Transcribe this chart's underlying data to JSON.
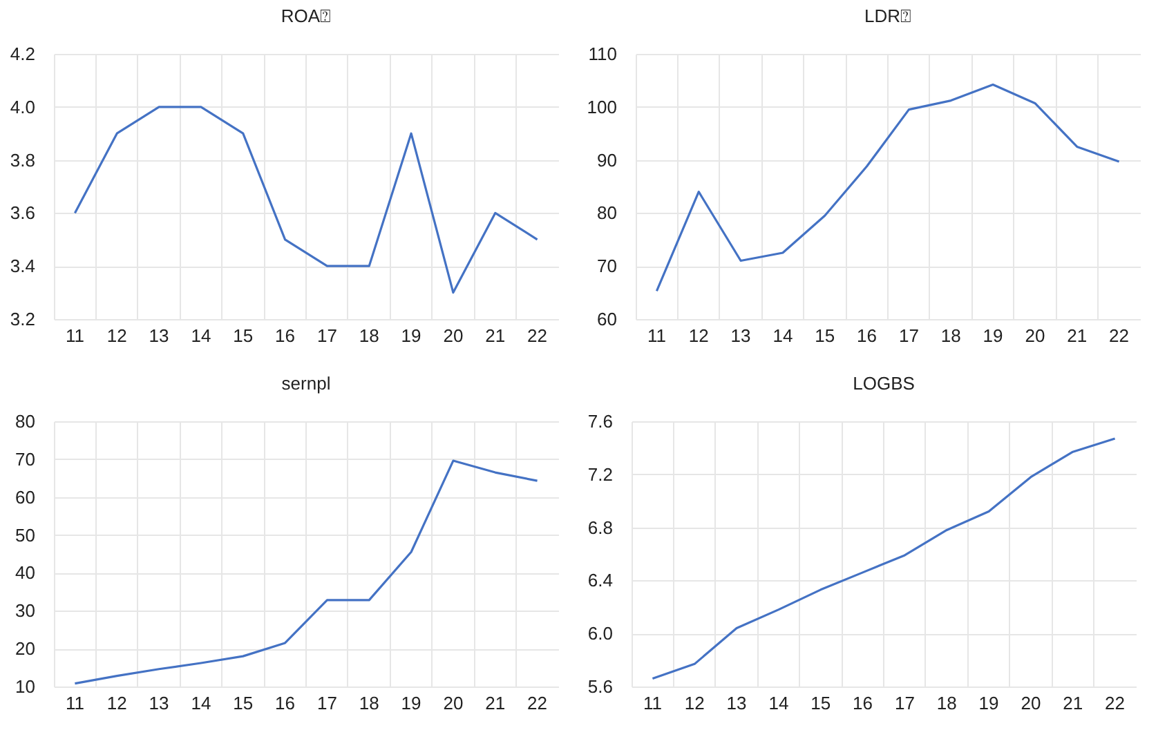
{
  "chart_data": [
    {
      "type": "line",
      "title": "ROA⍰",
      "categories": [
        "11",
        "12",
        "13",
        "14",
        "15",
        "16",
        "17",
        "18",
        "19",
        "20",
        "21",
        "22"
      ],
      "series": [
        {
          "color": "#4472c4",
          "values": [
            3.6,
            3.9,
            4.0,
            4.0,
            3.9,
            3.5,
            3.4,
            3.4,
            3.9,
            3.3,
            3.6,
            3.5
          ]
        }
      ],
      "ylim": [
        3.2,
        4.2
      ],
      "yticks": [
        {
          "value": 3.2,
          "label": "3.2"
        },
        {
          "value": 3.4,
          "label": "3.4"
        },
        {
          "value": 3.6,
          "label": "3.6"
        },
        {
          "value": 3.8,
          "label": "3.8"
        },
        {
          "value": 4.0,
          "label": "4.0"
        },
        {
          "value": 4.2,
          "label": "4.2"
        }
      ],
      "grid": true
    },
    {
      "type": "line",
      "title": "LDR⍰",
      "categories": [
        "11",
        "12",
        "13",
        "14",
        "15",
        "16",
        "17",
        "18",
        "19",
        "20",
        "21",
        "22"
      ],
      "series": [
        {
          "color": "#4472c4",
          "values": [
            65.3,
            84,
            71,
            72.5,
            79.5,
            88.8,
            99.5,
            101.2,
            104.2,
            100.7,
            92.5,
            89.7
          ]
        }
      ],
      "ylim": [
        60,
        110
      ],
      "yticks": [
        60,
        70,
        80,
        90,
        100,
        110
      ],
      "grid": true
    },
    {
      "type": "line",
      "title": "sernpl",
      "categories": [
        "11",
        "12",
        "13",
        "14",
        "15",
        "16",
        "17",
        "18",
        "19",
        "20",
        "21",
        "22"
      ],
      "series": [
        {
          "color": "#4472c4",
          "values": [
            10.8,
            12.8,
            14.6,
            16.2,
            18.0,
            21.5,
            32.8,
            32.8,
            45.5,
            69.6,
            66.5,
            64.3
          ]
        }
      ],
      "ylim": [
        10,
        80
      ],
      "yticks": [
        10,
        20,
        30,
        40,
        50,
        60,
        70,
        80
      ],
      "grid": true
    },
    {
      "type": "line",
      "title": "LOGBS",
      "categories": [
        "11",
        "12",
        "13",
        "14",
        "15",
        "16",
        "17",
        "18",
        "19",
        "20",
        "21",
        "22"
      ],
      "series": [
        {
          "color": "#4472c4",
          "values": [
            5.66,
            5.77,
            6.04,
            6.18,
            6.33,
            6.46,
            6.59,
            6.78,
            6.92,
            7.18,
            7.37,
            7.47
          ]
        }
      ],
      "ylim": [
        5.6,
        7.6
      ],
      "yticks": [
        {
          "value": 5.6,
          "label": "5.6"
        },
        {
          "value": 6.0,
          "label": "6.0"
        },
        {
          "value": 6.4,
          "label": "6.4"
        },
        {
          "value": 6.8,
          "label": "6.8"
        },
        {
          "value": 7.2,
          "label": "7.2"
        },
        {
          "value": 7.6,
          "label": "7.6"
        }
      ],
      "grid": true
    }
  ]
}
